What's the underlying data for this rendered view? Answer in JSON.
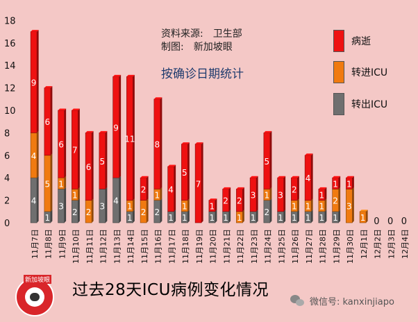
{
  "source": {
    "line1": "资料来源:　卫生部",
    "line2": "制图:　新加坡眼"
  },
  "subtitle": "按确诊日期统计",
  "legend": [
    {
      "label": "病逝",
      "color": "#ee1111"
    },
    {
      "label": "转进ICU",
      "color": "#f07a10"
    },
    {
      "label": "转出ICU",
      "color": "#6f6f6f"
    }
  ],
  "title": "过去28天ICU病例变化情况",
  "logo_text": "新加坡眼",
  "wechat": "微信号: kanxinjiapo",
  "chart_data": {
    "type": "bar",
    "stacked": true,
    "categories": [
      "11月7日",
      "11月8日",
      "11月9日",
      "11月10日",
      "11月11日",
      "11月12日",
      "11月13日",
      "11月14日",
      "11月15日",
      "11月16日",
      "11月17日",
      "11月18日",
      "11月19日",
      "11月20日",
      "11月21日",
      "11月22日",
      "11月23日",
      "11月24日",
      "11月25日",
      "11月26日",
      "11月27日",
      "11月28日",
      "11月29日",
      "11月30日",
      "12月1日",
      "12月2日",
      "12月3日",
      "12月4日"
    ],
    "series": [
      {
        "name": "转出ICU",
        "color": "#6f6f6f",
        "values": [
          4,
          1,
          3,
          2,
          0,
          3,
          4,
          1,
          0,
          2,
          1,
          1,
          0,
          1,
          1,
          0,
          1,
          2,
          1,
          1,
          1,
          1,
          1,
          0,
          0,
          0,
          0,
          0
        ]
      },
      {
        "name": "转进ICU",
        "color": "#f07a10",
        "values": [
          4,
          5,
          1,
          1,
          2,
          0,
          0,
          1,
          2,
          1,
          0,
          1,
          0,
          0,
          0,
          1,
          0,
          1,
          0,
          1,
          1,
          1,
          2,
          3,
          1,
          0,
          0,
          0
        ]
      },
      {
        "name": "病逝",
        "color": "#ee1111",
        "values": [
          9,
          6,
          6,
          7,
          6,
          5,
          9,
          11,
          2,
          8,
          4,
          5,
          7,
          1,
          2,
          2,
          3,
          5,
          3,
          2,
          4,
          1,
          1,
          1,
          0,
          0,
          0,
          0
        ]
      }
    ],
    "zero_labels": [
      "0",
      "0",
      "0"
    ],
    "yticks": [
      "0",
      "2",
      "4",
      "6",
      "8",
      "10",
      "12",
      "14",
      "16",
      "18"
    ],
    "ylim": [
      0,
      18
    ],
    "grid": false,
    "legend_position": "right"
  }
}
